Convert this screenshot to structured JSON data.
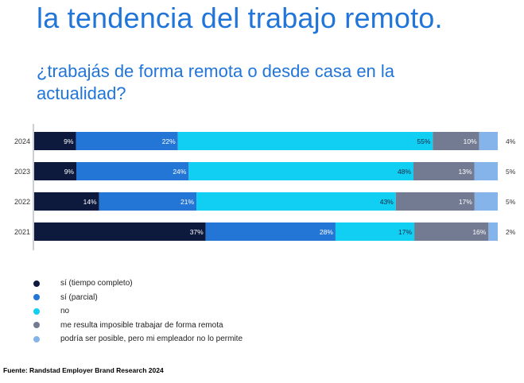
{
  "title": "la tendencia del trabajo remoto.",
  "subtitle": "¿trabajás de forma remota o desde casa en la actualidad?",
  "source": "Fuente: Randstad Employer Brand Research 2024",
  "chart_data": {
    "type": "bar",
    "orientation": "horizontal",
    "stacked": true,
    "categories": [
      "2024",
      "2023",
      "2022",
      "2021"
    ],
    "value_suffix": "%",
    "series": [
      {
        "name": "sí (tiempo completo)",
        "color": "#0d1a3e",
        "values": [
          9,
          9,
          14,
          37
        ]
      },
      {
        "name": "sí (parcial)",
        "color": "#2376d6",
        "values": [
          22,
          24,
          21,
          28
        ]
      },
      {
        "name": "no",
        "color": "#10cff3",
        "values": [
          55,
          48,
          43,
          17
        ]
      },
      {
        "name": "me resulta imposible trabajar de forma remota",
        "color": "#727b92",
        "values": [
          10,
          13,
          17,
          16
        ]
      },
      {
        "name": "podría ser posible, pero mi empleador no lo permite",
        "color": "#84b4ea",
        "values": [
          4,
          5,
          5,
          2
        ]
      }
    ],
    "legend_position": "bottom-left",
    "grid": false
  }
}
